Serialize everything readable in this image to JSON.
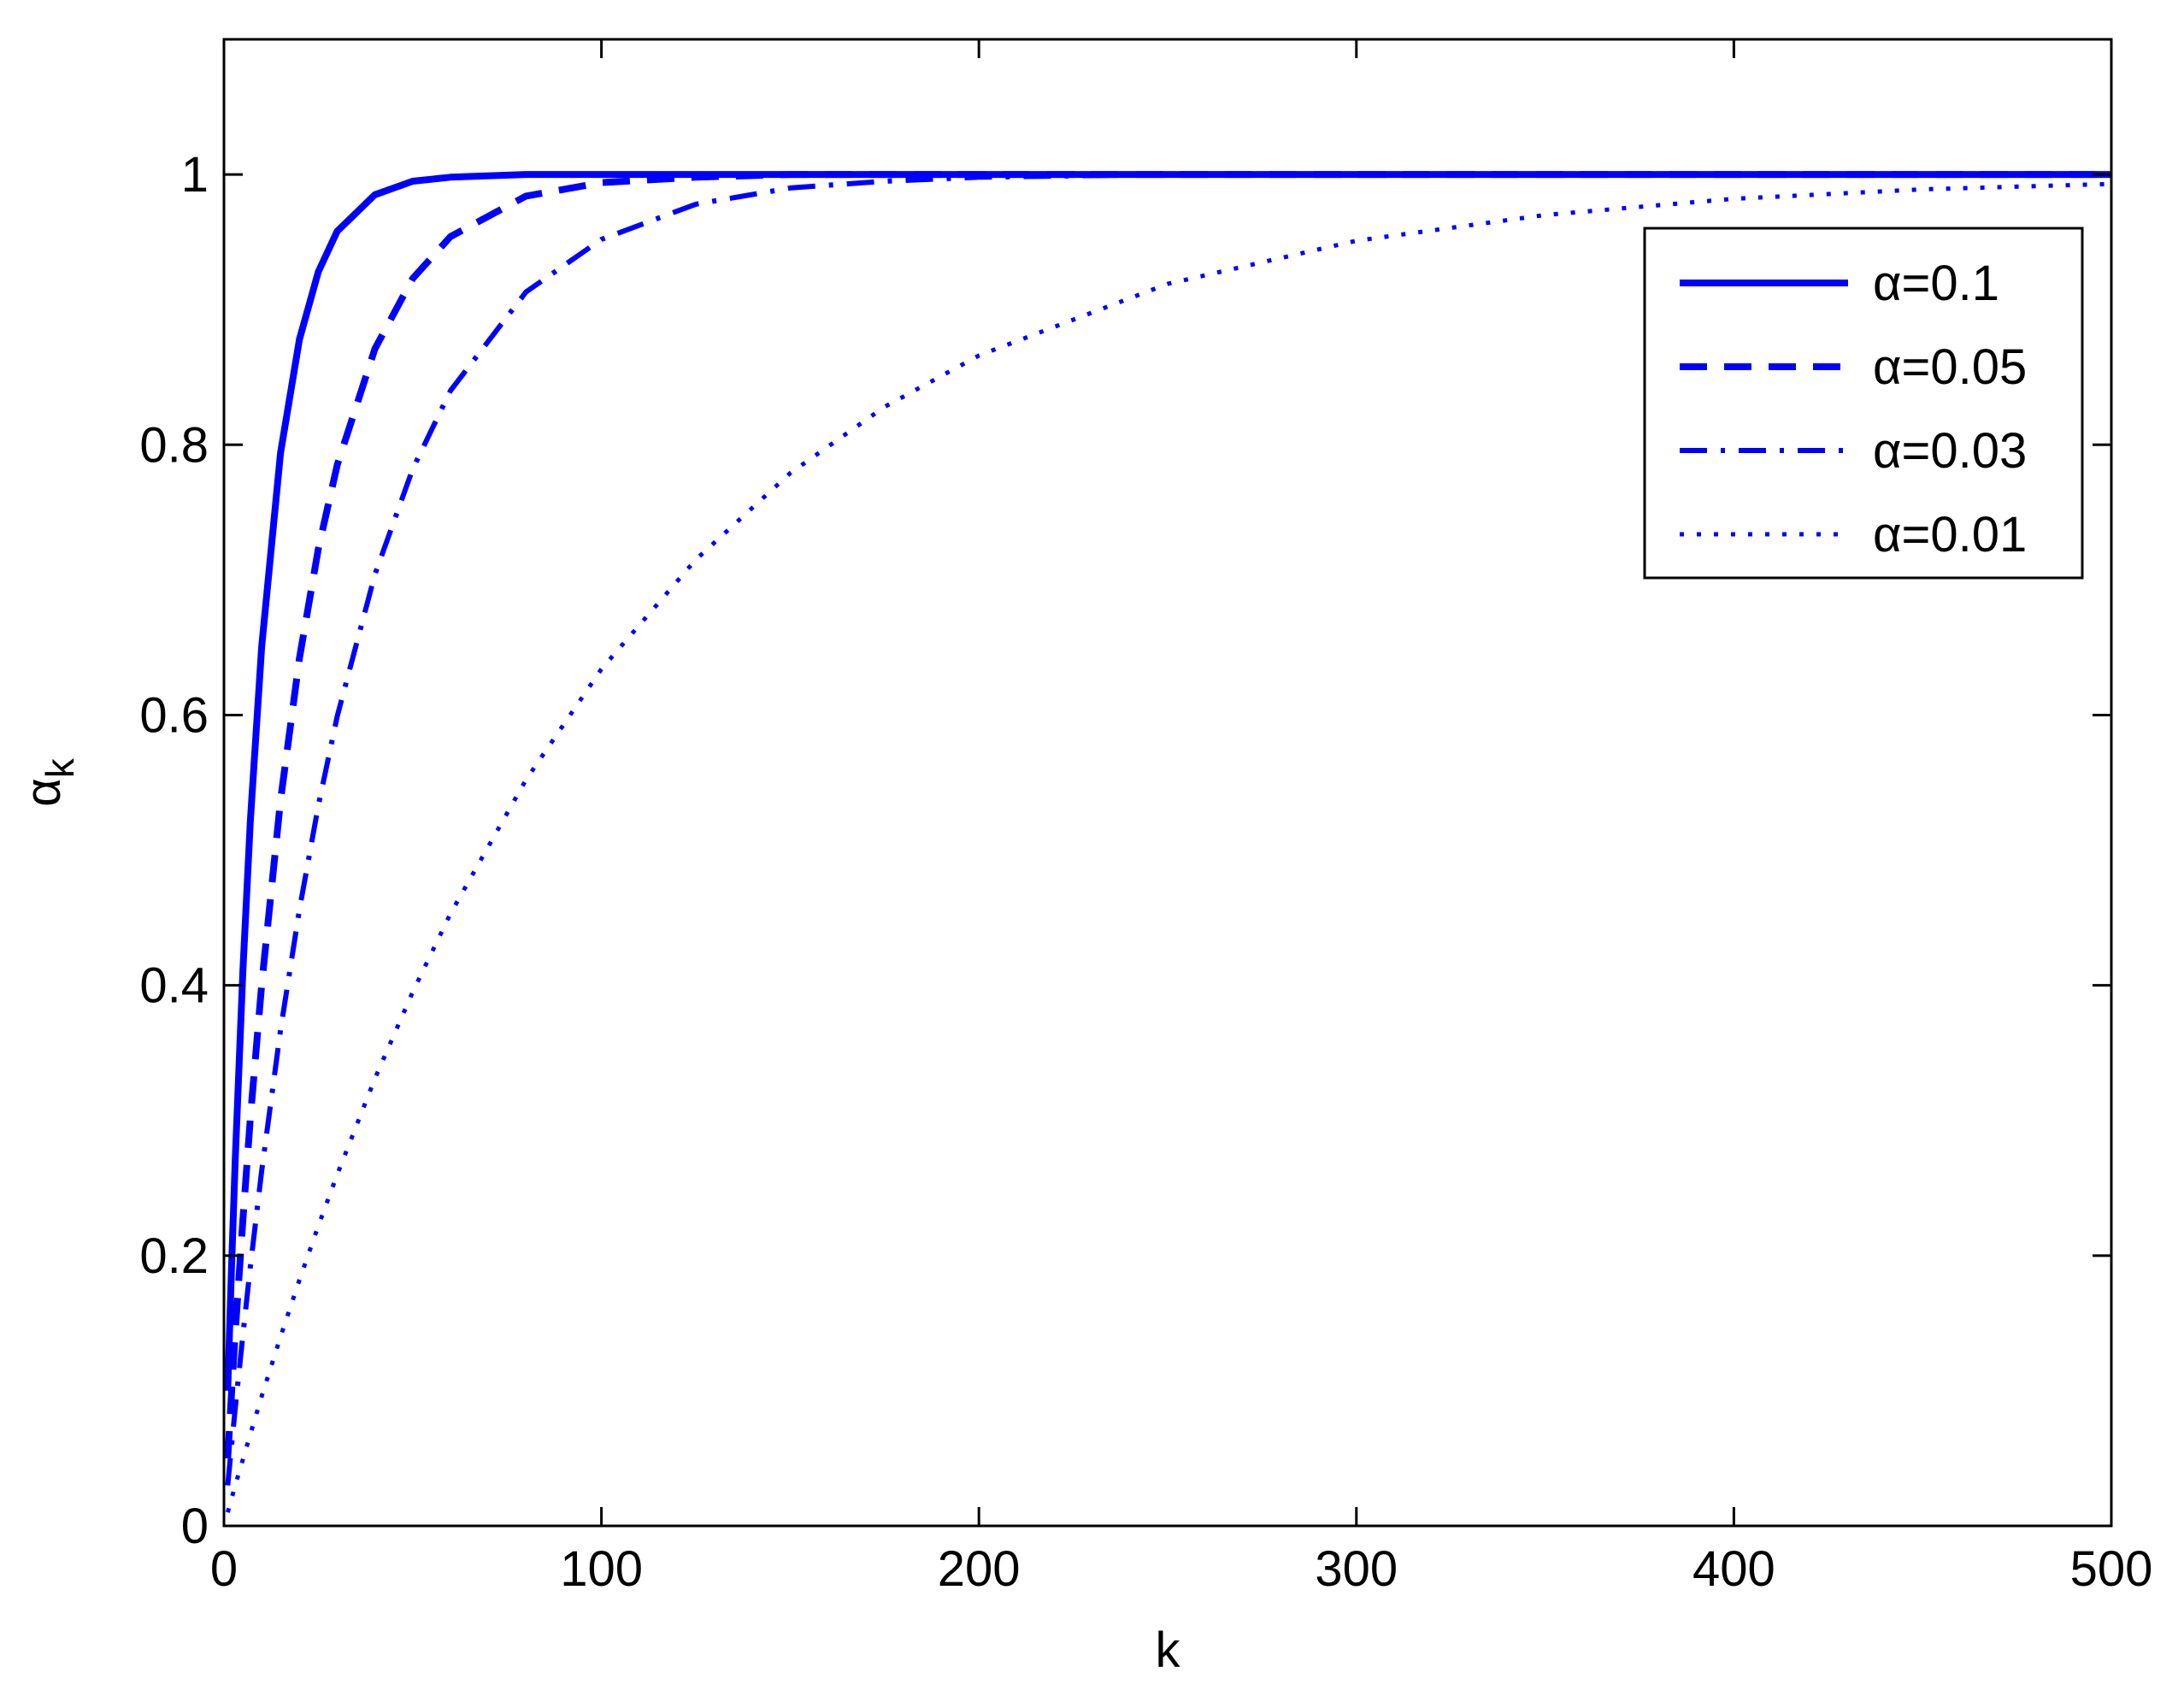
{
  "chart_data": {
    "type": "line",
    "xlabel": "k",
    "ylabel": "α",
    "ylabel_subscript": "k",
    "x": [
      1,
      2,
      3,
      5,
      7,
      10,
      15,
      20,
      25,
      30,
      40,
      50,
      60,
      80,
      100,
      125,
      150,
      175,
      200,
      250,
      300,
      350,
      400,
      450,
      500
    ],
    "series": [
      {
        "name": "α=0.1",
        "color": "#0000ff",
        "style": "solid",
        "values": [
          0.1,
          0.19,
          0.271,
          0.41,
          0.522,
          0.651,
          0.794,
          0.878,
          0.928,
          0.958,
          0.985,
          0.995,
          0.998,
          1,
          1,
          1,
          1,
          1,
          1,
          1,
          1,
          1,
          1,
          1,
          1
        ]
      },
      {
        "name": "α=0.05",
        "color": "#0000ff",
        "style": "dashed",
        "values": [
          0.05,
          0.0975,
          0.143,
          0.226,
          0.302,
          0.401,
          0.537,
          0.642,
          0.723,
          0.785,
          0.871,
          0.923,
          0.954,
          0.984,
          0.994,
          0.998,
          1,
          1,
          1,
          1,
          1,
          1,
          1,
          1,
          1
        ]
      },
      {
        "name": "α=0.03",
        "color": "#0000ff",
        "style": "dashdot",
        "values": [
          0.03,
          0.059,
          0.087,
          0.141,
          0.192,
          0.263,
          0.367,
          0.456,
          0.533,
          0.599,
          0.704,
          0.782,
          0.84,
          0.913,
          0.952,
          0.978,
          0.99,
          0.995,
          0.998,
          1,
          1,
          1,
          1,
          1,
          1
        ]
      },
      {
        "name": "α=0.01",
        "color": "#0000ff",
        "style": "dotted",
        "values": [
          0.01,
          0.02,
          0.03,
          0.049,
          0.068,
          0.096,
          0.14,
          0.182,
          0.222,
          0.26,
          0.331,
          0.395,
          0.453,
          0.552,
          0.634,
          0.715,
          0.779,
          0.828,
          0.866,
          0.919,
          0.951,
          0.97,
          0.982,
          0.989,
          0.993
        ]
      }
    ],
    "xlim": [
      0,
      500
    ],
    "ylim": [
      0,
      1.1
    ],
    "xticks": [
      0,
      100,
      200,
      300,
      400,
      500
    ],
    "yticks": [
      0,
      0.2,
      0.4,
      0.6,
      0.8,
      1
    ],
    "grid": false,
    "legend": "northeast"
  }
}
